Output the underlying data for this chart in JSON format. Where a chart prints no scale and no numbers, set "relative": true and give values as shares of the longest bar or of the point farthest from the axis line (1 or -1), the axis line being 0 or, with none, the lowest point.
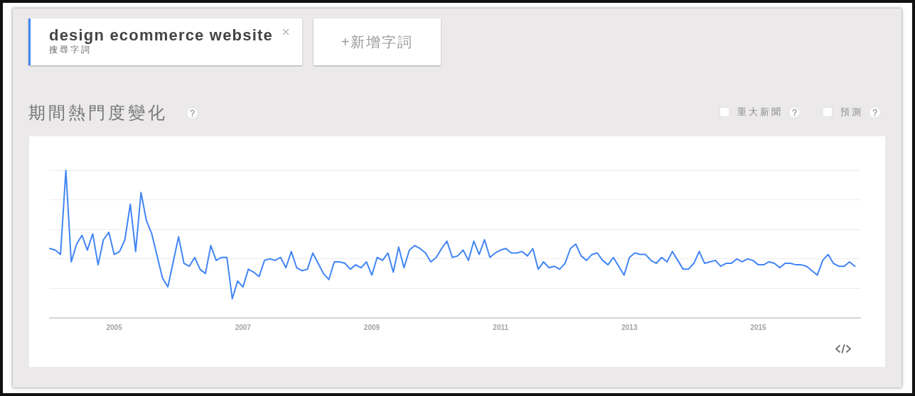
{
  "chart_data": {
    "type": "line",
    "title": "期間熱門度變化",
    "relative": true,
    "legend": "top left",
    "grid": "y",
    "annotations": [
      "搜尋字詞",
      "+新增字詞",
      "重大新聞",
      "預測"
    ],
    "xlim": [
      "2004-01",
      "2016-08"
    ],
    "xticks": [
      "2005",
      "2007",
      "2009",
      "2011",
      "2013",
      "2015"
    ],
    "x": [
      "2004-01",
      "2004-02",
      "2004-03",
      "2004-04",
      "2004-05",
      "2004-06",
      "2004-07",
      "2004-08",
      "2004-09",
      "2004-10",
      "2004-11",
      "2004-12",
      "2005-01",
      "2005-02",
      "2005-03",
      "2005-04",
      "2005-05",
      "2005-06",
      "2005-07",
      "2005-08",
      "2005-09",
      "2005-10",
      "2005-11",
      "2005-12",
      "2006-01",
      "2006-02",
      "2006-03",
      "2006-04",
      "2006-05",
      "2006-06",
      "2006-07",
      "2006-08",
      "2006-09",
      "2006-10",
      "2006-11",
      "2006-12",
      "2007-01",
      "2007-02",
      "2007-03",
      "2007-04",
      "2007-05",
      "2007-06",
      "2007-07",
      "2007-08",
      "2007-09",
      "2007-10",
      "2007-11",
      "2007-12",
      "2008-01",
      "2008-02",
      "2008-03",
      "2008-04",
      "2008-05",
      "2008-06",
      "2008-07",
      "2008-08",
      "2008-09",
      "2008-10",
      "2008-11",
      "2008-12",
      "2009-01",
      "2009-02",
      "2009-03",
      "2009-04",
      "2009-05",
      "2009-06",
      "2009-07",
      "2009-08",
      "2009-09",
      "2009-10",
      "2009-11",
      "2009-12",
      "2010-01",
      "2010-02",
      "2010-03",
      "2010-04",
      "2010-05",
      "2010-06",
      "2010-07",
      "2010-08",
      "2010-09",
      "2010-10",
      "2010-11",
      "2010-12",
      "2011-01",
      "2011-02",
      "2011-03",
      "2011-04",
      "2011-05",
      "2011-06",
      "2011-07",
      "2011-08",
      "2011-09",
      "2011-10",
      "2011-11",
      "2011-12",
      "2012-01",
      "2012-02",
      "2012-03",
      "2012-04",
      "2012-05",
      "2012-06",
      "2012-07",
      "2012-08",
      "2012-09",
      "2012-10",
      "2012-11",
      "2012-12",
      "2013-01",
      "2013-02",
      "2013-03",
      "2013-04",
      "2013-05",
      "2013-06",
      "2013-07",
      "2013-08",
      "2013-09",
      "2013-10",
      "2013-11",
      "2013-12",
      "2014-01",
      "2014-02",
      "2014-03",
      "2014-04",
      "2014-05",
      "2014-06",
      "2014-07",
      "2014-08",
      "2014-09",
      "2014-10",
      "2014-11",
      "2014-12",
      "2015-01",
      "2015-02",
      "2015-03",
      "2015-04",
      "2015-05",
      "2015-06",
      "2015-07",
      "2015-08",
      "2015-09",
      "2015-10",
      "2015-11",
      "2015-12",
      "2016-01",
      "2016-02",
      "2016-03",
      "2016-04",
      "2016-05",
      "2016-06",
      "2016-07"
    ],
    "series": [
      {
        "name": "design ecommerce website",
        "color": "#4285f4",
        "values": [
          0.47,
          0.46,
          0.43,
          1,
          0.38,
          0.5,
          0.56,
          0.46,
          0.57,
          0.36,
          0.53,
          0.58,
          0.43,
          0.45,
          0.53,
          0.77,
          0.45,
          0.85,
          0.66,
          0.57,
          0.42,
          0.27,
          0.21,
          0.38,
          0.55,
          0.37,
          0.35,
          0.41,
          0.33,
          0.3,
          0.49,
          0.39,
          0.41,
          0.41,
          0.13,
          0.25,
          0.21,
          0.33,
          0.31,
          0.28,
          0.39,
          0.4,
          0.39,
          0.41,
          0.34,
          0.45,
          0.34,
          0.32,
          0.33,
          0.44,
          0.37,
          0.3,
          0.26,
          0.38,
          0.38,
          0.37,
          0.33,
          0.36,
          0.34,
          0.38,
          0.29,
          0.41,
          0.39,
          0.44,
          0.31,
          0.48,
          0.34,
          0.46,
          0.49,
          0.47,
          0.44,
          0.38,
          0.41,
          0.47,
          0.52,
          0.41,
          0.42,
          0.46,
          0.39,
          0.52,
          0.43,
          0.53,
          0.41,
          0.44,
          0.46,
          0.47,
          0.44,
          0.44,
          0.45,
          0.42,
          0.47,
          0.33,
          0.38,
          0.34,
          0.35,
          0.33,
          0.37,
          0.47,
          0.5,
          0.42,
          0.39,
          0.43,
          0.44,
          0.39,
          0.36,
          0.41,
          0.35,
          0.29,
          0.41,
          0.44,
          0.43,
          0.43,
          0.39,
          0.37,
          0.41,
          0.38,
          0.45,
          0.39,
          0.33,
          0.33,
          0.37,
          0.45,
          0.37,
          0.38,
          0.39,
          0.35,
          0.37,
          0.37,
          0.4,
          0.38,
          0.4,
          0.39,
          0.36,
          0.36,
          0.38,
          0.37,
          0.34,
          0.37,
          0.37,
          0.36,
          0.36,
          0.35,
          0.32,
          0.29,
          0.39,
          0.43,
          0.37,
          0.35,
          0.35,
          0.38,
          0.35
        ]
      }
    ]
  }
}
